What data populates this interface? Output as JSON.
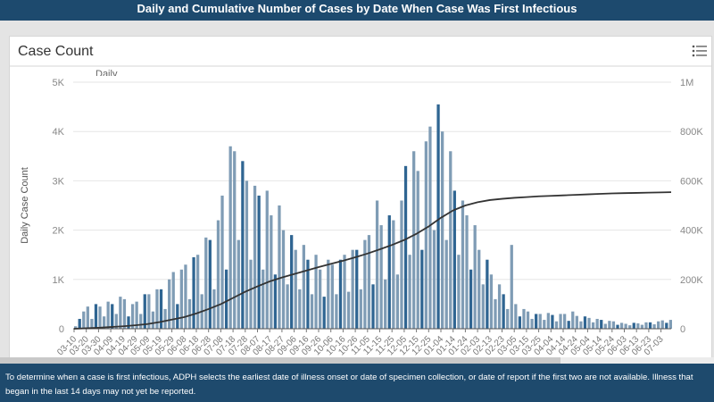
{
  "header": {
    "title": "Daily and Cumulative Number of Cases by Date When Case Was First Infectious"
  },
  "card": {
    "title": "Case Count",
    "legend_partial": "Daily",
    "menu_icon": "list-icon"
  },
  "footer": {
    "note": "To determine when a case is first infectious, ADPH selects the earliest date of illness onset or date of specimen collection, or date of report if the first two are not available. Illness that began in the last 14 days may not yet be reported."
  },
  "colors": {
    "bar": "#7f9cb5",
    "bar_dark": "#2f6592",
    "line": "#333333",
    "header": "#1d4a6e"
  },
  "chart_data": {
    "type": "bar+line",
    "ylabel": "Daily Case Count",
    "ylim": [
      0,
      5000
    ],
    "y2lim": [
      0,
      1000000
    ],
    "yticks": [
      "0",
      "1K",
      "2K",
      "3K",
      "4K",
      "5K"
    ],
    "y2ticks": [
      "0",
      "200K",
      "400K",
      "600K",
      "800K",
      "1M"
    ],
    "grid": true,
    "categories": [
      "03-10",
      "03-20",
      "03-30",
      "04-09",
      "04-19",
      "04-29",
      "05-09",
      "05-19",
      "05-29",
      "06-08",
      "06-18",
      "06-28",
      "07-08",
      "07-18",
      "07-28",
      "08-07",
      "08-17",
      "08-27",
      "09-06",
      "09-16",
      "09-26",
      "10-06",
      "10-16",
      "10-26",
      "11-05",
      "11-15",
      "11-25",
      "12-05",
      "12-15",
      "12-25",
      "01-04",
      "01-14",
      "01-24",
      "02-03",
      "02-13",
      "02-23",
      "03-05",
      "03-15",
      "03-25",
      "04-04",
      "04-14",
      "04-24",
      "05-04",
      "05-14",
      "05-24",
      "06-03",
      "06-13",
      "06-23",
      "07-03"
    ],
    "series": [
      {
        "kind": "bar",
        "axis": "left",
        "values_per_interval": [
          [
            50,
            200,
            350
          ],
          [
            450,
            200,
            500
          ],
          [
            450,
            250,
            550
          ],
          [
            500,
            300,
            650
          ],
          [
            600,
            250,
            500
          ],
          [
            550,
            300,
            700
          ],
          [
            700,
            350,
            800
          ],
          [
            800,
            400,
            1000
          ],
          [
            1150,
            500,
            1200
          ],
          [
            1300,
            600,
            1450
          ],
          [
            1500,
            700,
            1850
          ],
          [
            1800,
            800,
            2200
          ],
          [
            2700,
            1200,
            3700
          ],
          [
            3600,
            1800,
            3400
          ],
          [
            3000,
            1400,
            2900
          ],
          [
            2700,
            1200,
            2800
          ],
          [
            2300,
            1100,
            2500
          ],
          [
            2000,
            900,
            1900
          ],
          [
            1600,
            800,
            1700
          ],
          [
            1400,
            700,
            1500
          ],
          [
            1200,
            650,
            1400
          ],
          [
            1300,
            700,
            1400
          ],
          [
            1500,
            750,
            1600
          ],
          [
            1600,
            800,
            1800
          ],
          [
            1900,
            900,
            2600
          ],
          [
            2100,
            1000,
            2300
          ],
          [
            2200,
            1100,
            2600
          ],
          [
            3300,
            1500,
            3600
          ],
          [
            3200,
            1600,
            3800
          ],
          [
            4100,
            2000,
            4550
          ],
          [
            4000,
            1800,
            3600
          ],
          [
            2800,
            1500,
            2600
          ],
          [
            2300,
            1200,
            2100
          ],
          [
            1600,
            900,
            1400
          ],
          [
            1100,
            600,
            900
          ],
          [
            700,
            400,
            1700
          ],
          [
            500,
            250,
            400
          ],
          [
            350,
            200,
            300
          ],
          [
            300,
            180,
            320
          ],
          [
            280,
            150,
            300
          ],
          [
            300,
            160,
            350
          ],
          [
            260,
            150,
            250
          ],
          [
            220,
            130,
            200
          ],
          [
            180,
            100,
            160
          ],
          [
            150,
            80,
            120
          ],
          [
            100,
            70,
            120
          ],
          [
            110,
            80,
            130
          ],
          [
            130,
            90,
            150
          ],
          [
            170,
            120,
            180
          ]
        ]
      },
      {
        "kind": "line",
        "axis": "right",
        "values": [
          0,
          2000,
          4000,
          7000,
          10000,
          14000,
          19000,
          27000,
          37000,
          47000,
          62000,
          80000,
          100000,
          125000,
          150000,
          172000,
          192000,
          208000,
          222000,
          236000,
          250000,
          263000,
          276000,
          290000,
          305000,
          322000,
          340000,
          360000,
          385000,
          415000,
          450000,
          480000,
          500000,
          513000,
          522000,
          527000,
          531000,
          534000,
          537000,
          539000,
          541000,
          543000,
          545000,
          547000,
          549000,
          550000,
          551000,
          552000,
          553000
        ]
      }
    ]
  }
}
